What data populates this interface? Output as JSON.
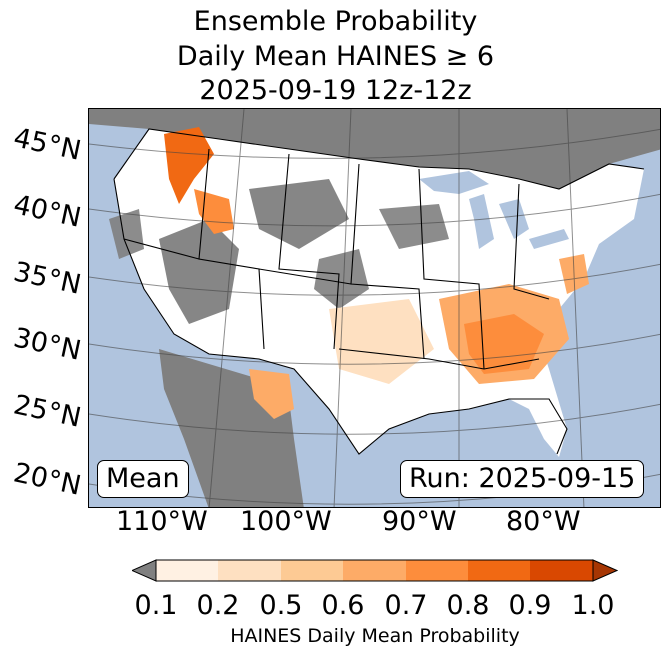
{
  "title": {
    "line1": "Ensemble Probability",
    "line2": "Daily Mean HAINES ≥ 6",
    "line3": "2025-09-19 12z-12z"
  },
  "map": {
    "lat_labels": [
      "45°N",
      "40°N",
      "35°N",
      "30°N",
      "25°N",
      "20°N"
    ],
    "lon_labels": [
      "110°W",
      "100°W",
      "90°W",
      "80°W"
    ],
    "mean_label": "Mean",
    "run_label": "Run: 2025-09-15",
    "colors": {
      "ocean": "#b0c4de",
      "no_data": "#808080",
      "land": "#ffffff"
    }
  },
  "colorbar": {
    "label": "HAINES Daily Mean Probability",
    "ticks": [
      "0.1",
      "0.2",
      "0.5",
      "0.6",
      "0.7",
      "0.8",
      "0.9",
      "1.0"
    ],
    "under_color": "#808080",
    "colors": [
      "#fff1e3",
      "#fee0c1",
      "#fdca94",
      "#fdab67",
      "#fd8d3c",
      "#f16913",
      "#d94801",
      "#a63603"
    ]
  }
}
